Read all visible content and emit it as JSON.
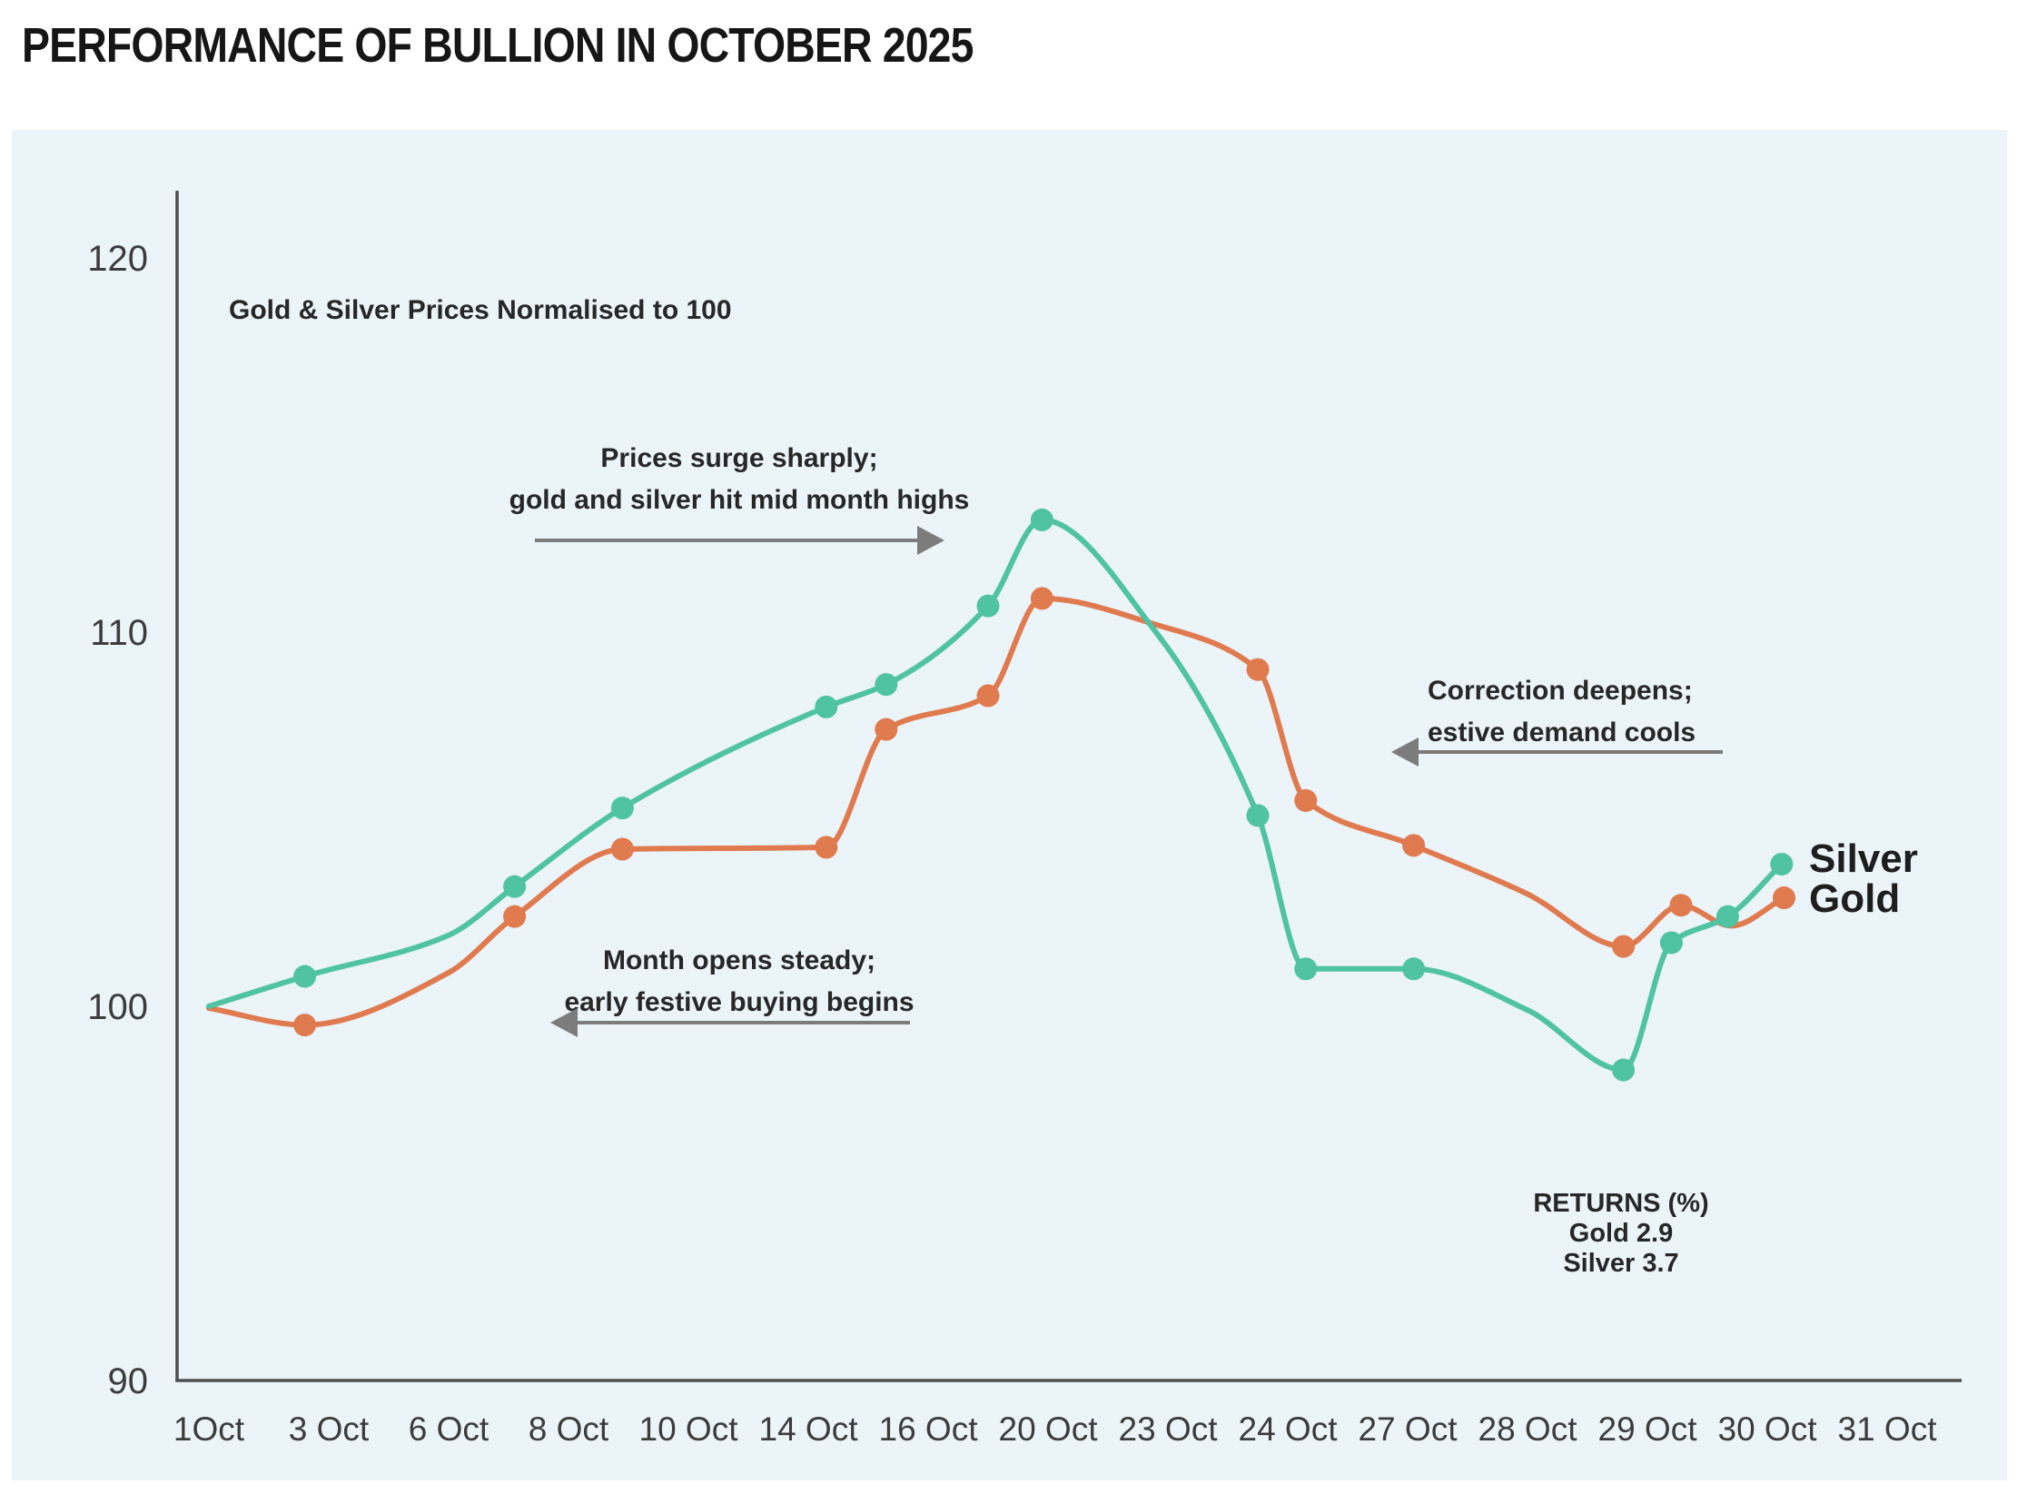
{
  "page": {
    "title": "PERFORMANCE OF BULLION IN OCTOBER 2025"
  },
  "chart": {
    "subtitle": "Gold & Silver Prices Normalised to 100",
    "annotations": {
      "surge": {
        "line1": "Prices surge sharply;",
        "line2": "gold and silver hit mid month highs"
      },
      "open": {
        "line1": "Month opens steady;",
        "line2": "early festive buying begins"
      },
      "correction": {
        "line1": "Correction deepens;",
        "line2": "estive demand cools"
      }
    },
    "returns": {
      "title": "RETURNS (%)",
      "gold": "Gold 2.9",
      "silver": "Silver 3.7"
    },
    "series_labels": {
      "silver": "Silver",
      "gold": "Gold"
    }
  },
  "chart_data": {
    "type": "line",
    "title": "PERFORMANCE OF BULLION IN OCTOBER 2025",
    "xlabel": "",
    "ylabel": "",
    "grid": false,
    "legend_position": "right-of-line-end",
    "categories": [
      "1Oct",
      "3 Oct",
      "6 Oct",
      "8 Oct",
      "10 Oct",
      "14 Oct",
      "16 Oct",
      "20 Oct",
      "23 Oct",
      "24 Oct",
      "27 Oct",
      "28 Oct",
      "29 Oct",
      "30 Oct",
      "31 Oct"
    ],
    "yticks": [
      120,
      110,
      100,
      90
    ],
    "ylim": [
      90,
      121
    ],
    "x_unit": "category-index (fractional positions reflect marker placement in the infographic)",
    "series": [
      {
        "name": "Gold",
        "color": "#E07A4F",
        "points": [
          {
            "x": 0.0,
            "v": 99.95,
            "m": false
          },
          {
            "x": 0.8,
            "v": 99.5,
            "m": true
          },
          {
            "x": 2.0,
            "v": 100.9,
            "m": false
          },
          {
            "x": 2.55,
            "v": 102.4,
            "m": true
          },
          {
            "x": 3.45,
            "v": 104.2,
            "m": true
          },
          {
            "x": 5.15,
            "v": 104.25,
            "m": true
          },
          {
            "x": 5.65,
            "v": 107.4,
            "m": true
          },
          {
            "x": 6.5,
            "v": 108.3,
            "m": true
          },
          {
            "x": 6.95,
            "v": 110.9,
            "m": true
          },
          {
            "x": 7.9,
            "v": 110.2,
            "m": false
          },
          {
            "x": 8.75,
            "v": 109.0,
            "m": true
          },
          {
            "x": 9.15,
            "v": 105.5,
            "m": true
          },
          {
            "x": 10.05,
            "v": 104.3,
            "m": true
          },
          {
            "x": 11.0,
            "v": 103.0,
            "m": false
          },
          {
            "x": 11.8,
            "v": 101.6,
            "m": true
          },
          {
            "x": 12.28,
            "v": 102.7,
            "m": true
          },
          {
            "x": 12.7,
            "v": 102.15,
            "m": false
          },
          {
            "x": 13.14,
            "v": 102.9,
            "m": true
          }
        ]
      },
      {
        "name": "Silver",
        "color": "#50C3A3",
        "points": [
          {
            "x": 0.0,
            "v": 100.0,
            "m": false
          },
          {
            "x": 0.8,
            "v": 100.8,
            "m": true
          },
          {
            "x": 2.0,
            "v": 101.9,
            "m": false
          },
          {
            "x": 2.55,
            "v": 103.2,
            "m": true
          },
          {
            "x": 3.45,
            "v": 105.3,
            "m": true
          },
          {
            "x": 5.15,
            "v": 108.0,
            "m": true
          },
          {
            "x": 5.65,
            "v": 108.6,
            "m": true
          },
          {
            "x": 6.5,
            "v": 110.7,
            "m": true
          },
          {
            "x": 6.95,
            "v": 113.0,
            "m": true
          },
          {
            "x": 7.9,
            "v": 110.0,
            "m": false
          },
          {
            "x": 8.75,
            "v": 105.1,
            "m": true
          },
          {
            "x": 9.15,
            "v": 101.0,
            "m": true
          },
          {
            "x": 10.05,
            "v": 101.0,
            "m": true
          },
          {
            "x": 11.0,
            "v": 99.9,
            "m": false
          },
          {
            "x": 11.8,
            "v": 98.3,
            "m": true
          },
          {
            "x": 12.2,
            "v": 101.7,
            "m": true
          },
          {
            "x": 12.67,
            "v": 102.4,
            "m": true
          },
          {
            "x": 13.12,
            "v": 103.8,
            "m": true
          }
        ]
      }
    ]
  },
  "colors": {
    "panel": "#EBF4F9",
    "axis": "#4E4E4E",
    "tick": "#3C3C3C",
    "arrow": "#7C7C7C",
    "text": "#272727",
    "silver": "#50C3A3",
    "gold": "#E07A4F"
  }
}
